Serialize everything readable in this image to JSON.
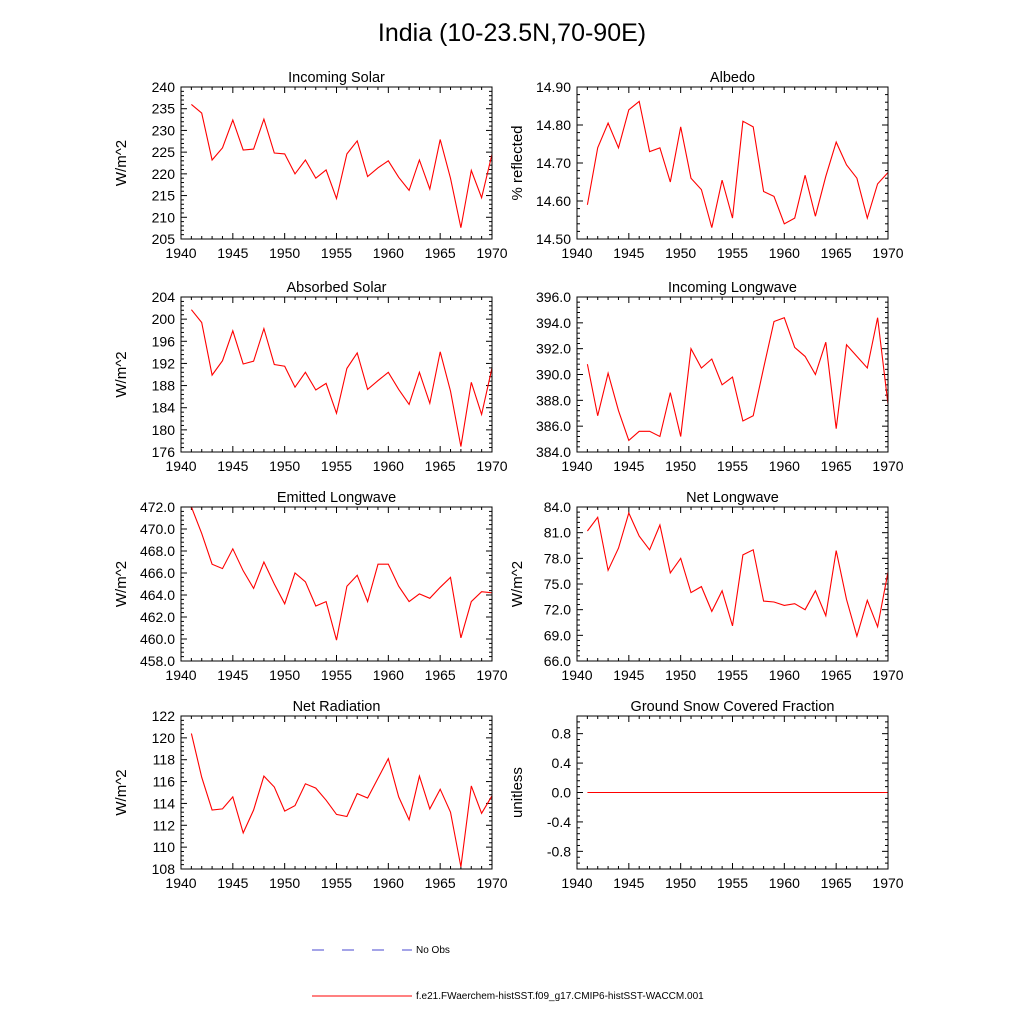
{
  "figure": {
    "title": "India (10-23.5N,70-90E)",
    "line_color": "#ff0000",
    "no_obs_color": "#4a4ad0"
  },
  "legend": {
    "no_obs_label": "No Obs",
    "model_label": "f.e21.FWaerchem-histSST.f09_g17.CMIP6-histSST-WACCM.001"
  },
  "chart_data": [
    {
      "type": "line",
      "title": "Incoming Solar",
      "ylabel": "W/m^2",
      "xlim": [
        1940,
        1970
      ],
      "ylim": [
        205,
        240
      ],
      "xticks": [
        1940,
        1945,
        1950,
        1955,
        1960,
        1965,
        1970
      ],
      "yticks": [
        "205",
        "210",
        "215",
        "220",
        "225",
        "230",
        "235",
        "240"
      ],
      "x": [
        1941,
        1942,
        1943,
        1944,
        1945,
        1946,
        1947,
        1948,
        1949,
        1950,
        1951,
        1952,
        1953,
        1954,
        1955,
        1956,
        1957,
        1958,
        1959,
        1960,
        1961,
        1962,
        1963,
        1964,
        1965,
        1966,
        1967,
        1968,
        1969,
        1970
      ],
      "values": [
        236,
        234,
        223.2,
        226,
        232.4,
        225.5,
        225.7,
        232.6,
        224.8,
        224.6,
        220,
        223.2,
        219,
        220.9,
        214.3,
        224.6,
        227.6,
        219.4,
        221.4,
        223,
        219.2,
        216.2,
        223.2,
        216.5,
        227.9,
        219,
        207.6,
        220.8,
        214.5,
        224.5
      ]
    },
    {
      "type": "line",
      "title": "Albedo",
      "ylabel": "% reflected",
      "xlim": [
        1940,
        1970
      ],
      "ylim": [
        14.5,
        14.9
      ],
      "xticks": [
        1940,
        1945,
        1950,
        1955,
        1960,
        1965,
        1970
      ],
      "yticks": [
        "14.50",
        "14.60",
        "14.70",
        "14.80",
        "14.90"
      ],
      "x": [
        1941,
        1942,
        1943,
        1944,
        1945,
        1946,
        1947,
        1948,
        1949,
        1950,
        1951,
        1952,
        1953,
        1954,
        1955,
        1956,
        1957,
        1958,
        1959,
        1960,
        1961,
        1962,
        1963,
        1964,
        1965,
        1966,
        1967,
        1968,
        1969,
        1970
      ],
      "values": [
        14.59,
        14.74,
        14.805,
        14.74,
        14.84,
        14.862,
        14.73,
        14.74,
        14.65,
        14.795,
        14.66,
        14.63,
        14.53,
        14.655,
        14.555,
        14.81,
        14.795,
        14.625,
        14.612,
        14.54,
        14.555,
        14.668,
        14.56,
        14.665,
        14.755,
        14.695,
        14.66,
        14.555,
        14.645,
        14.675
      ]
    },
    {
      "type": "line",
      "title": "Absorbed Solar",
      "ylabel": "W/m^2",
      "xlim": [
        1940,
        1970
      ],
      "ylim": [
        176,
        204
      ],
      "xticks": [
        1940,
        1945,
        1950,
        1955,
        1960,
        1965,
        1970
      ],
      "yticks": [
        "176",
        "180",
        "184",
        "188",
        "192",
        "196",
        "200",
        "204"
      ],
      "x": [
        1941,
        1942,
        1943,
        1944,
        1945,
        1946,
        1947,
        1948,
        1949,
        1950,
        1951,
        1952,
        1953,
        1954,
        1955,
        1956,
        1957,
        1958,
        1959,
        1960,
        1961,
        1962,
        1963,
        1964,
        1965,
        1966,
        1967,
        1968,
        1969,
        1970
      ],
      "values": [
        201.7,
        199.4,
        189.9,
        192.5,
        197.9,
        191.9,
        192.4,
        198.3,
        191.8,
        191.5,
        187.7,
        190.4,
        187.2,
        188.4,
        183,
        191.1,
        193.9,
        187.3,
        188.9,
        190.4,
        187.3,
        184.6,
        190.4,
        184.8,
        194.1,
        187,
        177,
        188.6,
        182.8,
        191.2
      ]
    },
    {
      "type": "line",
      "title": "Incoming Longwave",
      "ylabel": "",
      "xlim": [
        1940,
        1970
      ],
      "ylim": [
        384,
        396
      ],
      "xticks": [
        1940,
        1945,
        1950,
        1955,
        1960,
        1965,
        1970
      ],
      "yticks": [
        "384.0",
        "386.0",
        "388.0",
        "390.0",
        "392.0",
        "394.0",
        "396.0"
      ],
      "x": [
        1941,
        1942,
        1943,
        1944,
        1945,
        1946,
        1947,
        1948,
        1949,
        1950,
        1951,
        1952,
        1953,
        1954,
        1955,
        1956,
        1957,
        1958,
        1959,
        1960,
        1961,
        1962,
        1963,
        1964,
        1965,
        1966,
        1967,
        1968,
        1969,
        1970
      ],
      "values": [
        390.8,
        386.8,
        390.1,
        387.2,
        384.9,
        385.6,
        385.6,
        385.2,
        388.6,
        385.2,
        392,
        390.5,
        391.2,
        389.2,
        389.8,
        386.4,
        386.8,
        390.5,
        394.1,
        394.4,
        392.1,
        391.4,
        390,
        392.5,
        385.8,
        392.3,
        391.4,
        390.5,
        394.4,
        387.7
      ]
    },
    {
      "type": "line",
      "title": "Emitted Longwave",
      "ylabel": "W/m^2",
      "xlim": [
        1940,
        1970
      ],
      "ylim": [
        458,
        472
      ],
      "xticks": [
        1940,
        1945,
        1950,
        1955,
        1960,
        1965,
        1970
      ],
      "yticks": [
        "458.0",
        "460.0",
        "462.0",
        "464.0",
        "466.0",
        "468.0",
        "470.0",
        "472.0"
      ],
      "x": [
        1941,
        1942,
        1943,
        1944,
        1945,
        1946,
        1947,
        1948,
        1949,
        1950,
        1951,
        1952,
        1953,
        1954,
        1955,
        1956,
        1957,
        1958,
        1959,
        1960,
        1961,
        1962,
        1963,
        1964,
        1965,
        1966,
        1967,
        1968,
        1969,
        1970
      ],
      "values": [
        472,
        469.6,
        466.8,
        466.4,
        468.2,
        466.2,
        464.6,
        467,
        465,
        463.2,
        466,
        465.2,
        463,
        463.4,
        459.9,
        464.8,
        465.8,
        463.4,
        466.8,
        466.8,
        464.8,
        463.4,
        464.1,
        463.7,
        464.7,
        465.6,
        460.1,
        463.4,
        464.3,
        464.2
      ]
    },
    {
      "type": "line",
      "title": "Net Longwave",
      "ylabel": "W/m^2",
      "xlim": [
        1940,
        1970
      ],
      "ylim": [
        66,
        84
      ],
      "xticks": [
        1940,
        1945,
        1950,
        1955,
        1960,
        1965,
        1970
      ],
      "yticks": [
        "66.0",
        "69.0",
        "72.0",
        "75.0",
        "78.0",
        "81.0",
        "84.0"
      ],
      "x": [
        1941,
        1942,
        1943,
        1944,
        1945,
        1946,
        1947,
        1948,
        1949,
        1950,
        1951,
        1952,
        1953,
        1954,
        1955,
        1956,
        1957,
        1958,
        1959,
        1960,
        1961,
        1962,
        1963,
        1964,
        1965,
        1966,
        1967,
        1968,
        1969,
        1970
      ],
      "values": [
        81.2,
        82.8,
        76.6,
        79.2,
        83.3,
        80.6,
        79,
        81.9,
        76.3,
        78,
        74,
        74.7,
        71.8,
        74.2,
        70.1,
        78.4,
        79,
        73,
        72.9,
        72.5,
        72.7,
        72,
        74.2,
        71.3,
        78.9,
        73.2,
        68.9,
        73.1,
        70,
        76.4
      ]
    },
    {
      "type": "line",
      "title": "Net Radiation",
      "ylabel": "W/m^2",
      "xlim": [
        1940,
        1970
      ],
      "ylim": [
        108,
        122
      ],
      "xticks": [
        1940,
        1945,
        1950,
        1955,
        1960,
        1965,
        1970
      ],
      "yticks": [
        "108",
        "110",
        "112",
        "114",
        "116",
        "118",
        "120",
        "122"
      ],
      "x": [
        1941,
        1942,
        1943,
        1944,
        1945,
        1946,
        1947,
        1948,
        1949,
        1950,
        1951,
        1952,
        1953,
        1954,
        1955,
        1956,
        1957,
        1958,
        1959,
        1960,
        1961,
        1962,
        1963,
        1964,
        1965,
        1966,
        1967,
        1968,
        1969,
        1970
      ],
      "values": [
        120.4,
        116.4,
        113.4,
        113.5,
        114.6,
        111.3,
        113.4,
        116.5,
        115.5,
        113.3,
        113.8,
        115.8,
        115.4,
        114.3,
        113,
        112.8,
        114.9,
        114.5,
        116.3,
        118.1,
        114.6,
        112.5,
        116.5,
        113.5,
        115.3,
        113.2,
        108.2,
        115.6,
        113.1,
        114.7
      ]
    },
    {
      "type": "line",
      "title": "Ground Snow Covered Fraction",
      "ylabel": "unitless",
      "xlim": [
        1940,
        1970
      ],
      "ylim": [
        -1.04,
        1.04
      ],
      "xticks": [
        1940,
        1945,
        1950,
        1955,
        1960,
        1965,
        1970
      ],
      "yticks": [
        "-0.8",
        "-0.4",
        "0.0",
        "0.4",
        "0.8"
      ],
      "x": [
        1941,
        1970
      ],
      "values": [
        0,
        0
      ]
    }
  ]
}
